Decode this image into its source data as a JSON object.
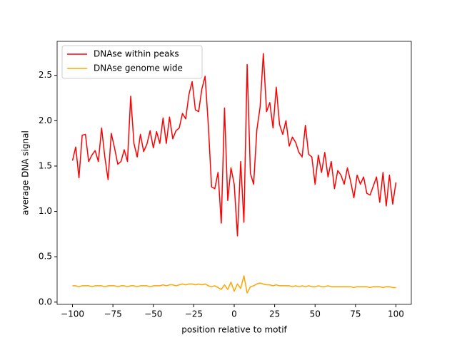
{
  "chart_data": {
    "type": "line",
    "xlabel": "position relative to motif",
    "ylabel": "average DNA signal",
    "x": [
      -100,
      -98,
      -96,
      -94,
      -92,
      -90,
      -88,
      -86,
      -84,
      -82,
      -80,
      -78,
      -76,
      -74,
      -72,
      -70,
      -68,
      -66,
      -64,
      -62,
      -60,
      -58,
      -56,
      -54,
      -52,
      -50,
      -48,
      -46,
      -44,
      -42,
      -40,
      -38,
      -36,
      -34,
      -32,
      -30,
      -28,
      -26,
      -24,
      -22,
      -20,
      -18,
      -16,
      -14,
      -12,
      -10,
      -8,
      -6,
      -4,
      -2,
      0,
      2,
      4,
      6,
      8,
      10,
      12,
      14,
      16,
      18,
      20,
      22,
      24,
      26,
      28,
      30,
      32,
      34,
      36,
      38,
      40,
      42,
      44,
      46,
      48,
      50,
      52,
      54,
      56,
      58,
      60,
      62,
      64,
      66,
      68,
      70,
      72,
      74,
      76,
      78,
      80,
      82,
      84,
      86,
      88,
      90,
      92,
      94,
      96,
      98,
      100
    ],
    "series": [
      {
        "name": "DNAse within peaks",
        "color": "#ff0000",
        "values": [
          1.56,
          1.71,
          1.37,
          1.84,
          1.85,
          1.55,
          1.62,
          1.67,
          1.55,
          1.92,
          1.6,
          1.35,
          1.86,
          1.7,
          1.52,
          1.55,
          1.68,
          1.55,
          2.27,
          1.75,
          1.6,
          1.85,
          1.66,
          1.74,
          1.89,
          1.7,
          1.88,
          1.75,
          2.03,
          1.75,
          2.04,
          1.8,
          1.89,
          1.92,
          2.08,
          2.02,
          2.29,
          2.43,
          2.12,
          2.1,
          2.35,
          2.49,
          1.95,
          1.27,
          1.25,
          1.43,
          0.87,
          2.14,
          1.12,
          1.48,
          1.3,
          0.73,
          1.55,
          0.88,
          2.62,
          1.42,
          1.3,
          1.9,
          2.15,
          2.74,
          2.1,
          2.2,
          1.92,
          2.37,
          1.96,
          1.85,
          2.0,
          1.72,
          1.82,
          1.76,
          1.65,
          1.6,
          1.95,
          1.63,
          1.6,
          1.3,
          1.62,
          1.43,
          1.65,
          1.38,
          1.55,
          1.25,
          1.45,
          1.4,
          1.3,
          1.48,
          1.33,
          1.15,
          1.4,
          1.3,
          1.38,
          1.2,
          1.18,
          1.28,
          1.38,
          1.1,
          1.43,
          1.06,
          1.4,
          1.08,
          1.32
        ]
      },
      {
        "name": "DNAse genome wide",
        "color": "#ffa500",
        "values": [
          0.18,
          0.18,
          0.17,
          0.18,
          0.18,
          0.18,
          0.17,
          0.18,
          0.18,
          0.18,
          0.17,
          0.18,
          0.18,
          0.18,
          0.17,
          0.18,
          0.18,
          0.17,
          0.18,
          0.18,
          0.17,
          0.18,
          0.18,
          0.18,
          0.17,
          0.18,
          0.18,
          0.18,
          0.19,
          0.18,
          0.19,
          0.19,
          0.18,
          0.19,
          0.2,
          0.19,
          0.2,
          0.2,
          0.19,
          0.2,
          0.19,
          0.2,
          0.18,
          0.17,
          0.18,
          0.16,
          0.14,
          0.19,
          0.14,
          0.22,
          0.12,
          0.2,
          0.15,
          0.29,
          0.1,
          0.17,
          0.18,
          0.2,
          0.21,
          0.2,
          0.19,
          0.19,
          0.18,
          0.19,
          0.18,
          0.18,
          0.18,
          0.18,
          0.17,
          0.18,
          0.17,
          0.18,
          0.17,
          0.18,
          0.17,
          0.17,
          0.18,
          0.17,
          0.17,
          0.18,
          0.17,
          0.17,
          0.17,
          0.17,
          0.17,
          0.17,
          0.17,
          0.16,
          0.17,
          0.17,
          0.17,
          0.17,
          0.16,
          0.17,
          0.17,
          0.17,
          0.16,
          0.17,
          0.17,
          0.16,
          0.16
        ]
      }
    ],
    "xlim": [
      -109.5,
      109.5
    ],
    "ylim": [
      -0.025,
      2.875
    ],
    "xticks": [
      {
        "value": -100,
        "label": "−100"
      },
      {
        "value": -75,
        "label": "−75"
      },
      {
        "value": -50,
        "label": "−50"
      },
      {
        "value": -25,
        "label": "−25"
      },
      0,
      25,
      50,
      75,
      100
    ],
    "yticks": [
      {
        "value": 0,
        "label": "0.0"
      },
      0.5,
      {
        "value": 1,
        "label": "1.0"
      },
      1.5,
      {
        "value": 2,
        "label": "2.0"
      },
      2.5
    ],
    "legend": "upper left"
  }
}
